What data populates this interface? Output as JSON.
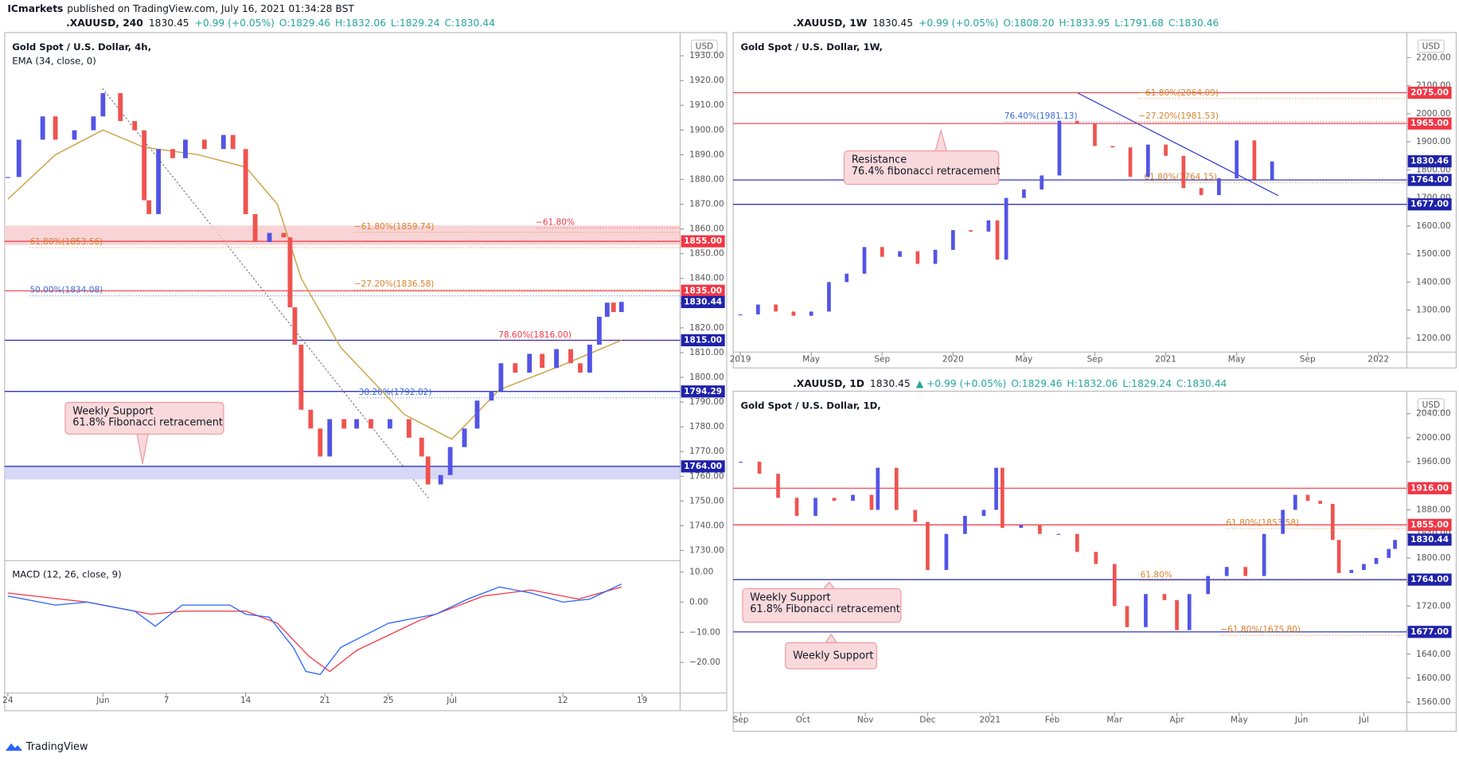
{
  "header": {
    "publisher": "ICmarkets",
    "published": "published on TradingView.com, July 16, 2021 01:34:28 BST"
  },
  "footer": "TradingView",
  "chart_data": [
    {
      "type": "candlestick",
      "symbol": ".XAUUSD, 240",
      "last": "1830.45",
      "change": "+0.99 (+0.05%)",
      "ohlc": [
        "O:1829.46",
        "H:1832.06",
        "L:1829.24",
        "C:1830.44"
      ],
      "title": "Gold Spot / U.S. Dollar, 4h,",
      "indicator": "EMA (34, close, 0)",
      "currency": "USD",
      "up_color": "#5254e6",
      "down_color": "#ef5350",
      "x": [
        0,
        0.7,
        2.2,
        3.0,
        4.2,
        5.4,
        6.0,
        7.1,
        8.0,
        8.6,
        8.9,
        9.5,
        10.4,
        11.2,
        12.4,
        13.6,
        14.2,
        15.0,
        15.6,
        16.5,
        17.4,
        17.8,
        18.1,
        18.5,
        19.1,
        19.7,
        20.3,
        21.2,
        22.0,
        22.9,
        24.1,
        25.3,
        26.1,
        26.5,
        27.3,
        27.9,
        28.8,
        29.6,
        30.5,
        31.1,
        32.0,
        32.9,
        33.7,
        34.6,
        35.5,
        36.1,
        36.7,
        37.3,
        37.8,
        38.2,
        38.7
      ],
      "values": [
        1881.0,
        1896.1,
        1905.5,
        1896.1,
        1899.9,
        1905.5,
        1914.9,
        1903.6,
        1899.9,
        1871.6,
        1866.0,
        1892.3,
        1888.6,
        1896.1,
        1892.3,
        1898.0,
        1892.3,
        1866.0,
        1854.7,
        1858.4,
        1856.6,
        1828.3,
        1813.2,
        1786.9,
        1779.3,
        1768.0,
        1783.1,
        1779.3,
        1783.1,
        1779.3,
        1783.1,
        1775.6,
        1768.0,
        1756.7,
        1760.5,
        1771.8,
        1779.3,
        1790.6,
        1794.4,
        1805.7,
        1801.9,
        1809.5,
        1803.8,
        1811.4,
        1805.7,
        1801.9,
        1813.2,
        1824.5,
        1830.2,
        1826.4,
        1830.5
      ],
      "ema": {
        "color": "#c9a13f",
        "x": [
          0,
          3,
          6,
          8.6,
          12,
          15,
          17,
          18.5,
          21,
          25,
          28,
          31,
          35,
          38.7
        ],
        "values": [
          1872,
          1890,
          1900,
          1893,
          1890,
          1885,
          1870,
          1840,
          1812,
          1785,
          1775,
          1795,
          1805,
          1815
        ]
      },
      "xlim": [
        -0.2,
        42.4
      ],
      "xticks": [
        {
          "value": 0,
          "label": "24"
        },
        {
          "value": 6,
          "label": "Jun"
        },
        {
          "value": 10,
          "label": "7"
        },
        {
          "value": 15,
          "label": "14"
        },
        {
          "value": 20,
          "label": "21"
        },
        {
          "value": 24,
          "label": "25"
        },
        {
          "value": 28,
          "label": "Jul"
        },
        {
          "value": 35,
          "label": "12"
        },
        {
          "value": 40,
          "label": "19"
        }
      ],
      "ylim": [
        1726.6,
        1937.5
      ],
      "yticks": [
        {
          "value": 1730,
          "label": "1730.00"
        },
        {
          "value": 1740,
          "label": "1740.00"
        },
        {
          "value": 1750,
          "label": "1750.00"
        },
        {
          "value": 1760,
          "label": "1760.00"
        },
        {
          "value": 1770,
          "label": "1770.00"
        },
        {
          "value": 1780,
          "label": "1780.00"
        },
        {
          "value": 1790,
          "label": "1790.00"
        },
        {
          "value": 1800,
          "label": "1800.00"
        },
        {
          "value": 1810,
          "label": "1810.00"
        },
        {
          "value": 1820,
          "label": "1820.00"
        },
        {
          "value": 1830,
          "label": "1830.00"
        },
        {
          "value": 1840,
          "label": "1840.00"
        },
        {
          "value": 1850,
          "label": "1850.00"
        },
        {
          "value": 1860,
          "label": "1860.00"
        },
        {
          "value": 1870,
          "label": "1870.00"
        },
        {
          "value": 1880,
          "label": "1880.00"
        },
        {
          "value": 1890,
          "label": "1890.00"
        },
        {
          "value": 1900,
          "label": "1900.00"
        },
        {
          "value": 1910,
          "label": "1910.00"
        },
        {
          "value": 1920,
          "label": "1920.00"
        },
        {
          "value": 1930,
          "label": "1930.00"
        }
      ],
      "levels": [
        {
          "value": 1855,
          "label": "1855.00",
          "color": "#f23645"
        },
        {
          "value": 1835,
          "label": "1835.00",
          "color": "#f23645"
        },
        {
          "value": 1815,
          "label": "1815.00",
          "color": "#1e22aa"
        },
        {
          "value": 1794.29,
          "label": "1794.29",
          "color": "#1e22aa"
        },
        {
          "value": 1764,
          "label": "1764.00",
          "color": "#1e22aa"
        }
      ],
      "last_price": {
        "value": 1830.44,
        "label": "1830.44"
      },
      "fib_labels": [
        {
          "value": 1859.74,
          "label": "−61.80%(1859.74)",
          "color": "#d9822b"
        },
        {
          "value": 1853.56,
          "label": "61.80%(1853.56)",
          "color": "#d9822b"
        },
        {
          "value": 1861.5,
          "label": "−61.80%",
          "color": "#f23645"
        },
        {
          "value": 1836.58,
          "label": "−27.20%(1836.58)",
          "color": "#d9822b"
        },
        {
          "value": 1834.08,
          "label": "50.00%(1834.08)",
          "color": "#3d6bd6"
        },
        {
          "value": 1816,
          "label": "78.60%(1816.00)",
          "color": "#f23645"
        },
        {
          "value": 1792.82,
          "label": "38.20%(1792.82)",
          "color": "#3d6bd6"
        }
      ],
      "annotations": [
        {
          "text": [
            "Weekly Support",
            "61.8% Fibonacci retracement"
          ]
        }
      ],
      "macd": {
        "title": "MACD (12, 26, close, 9)",
        "ylim": [
          -28.9,
          13.4
        ],
        "yticks": [
          {
            "value": 10,
            "label": "10.00"
          },
          {
            "value": 0,
            "label": "0.00"
          },
          {
            "value": -10,
            "label": "−10.00"
          },
          {
            "value": -20,
            "label": "−20.00"
          }
        ],
        "macd": {
          "color": "#2962ff",
          "x": [
            0,
            3,
            5,
            8,
            9.3,
            11,
            14,
            15,
            16.5,
            18,
            18.8,
            19.7,
            21,
            24,
            27,
            29,
            31,
            33,
            35,
            36.7,
            38.7
          ],
          "values": [
            2,
            -1,
            0,
            -3,
            -8,
            -1,
            -1,
            -4,
            -5,
            -15,
            -23,
            -24,
            -15,
            -7,
            -4,
            1,
            5,
            3,
            0,
            1,
            6
          ]
        },
        "signal": {
          "color": "#f23645",
          "x": [
            0,
            5,
            9,
            11,
            15,
            17,
            19,
            20.3,
            22,
            26,
            30,
            33,
            36,
            38.7
          ],
          "values": [
            3,
            0,
            -4,
            -3,
            -3,
            -7,
            -18,
            -23,
            -16,
            -6,
            2,
            4,
            1,
            5
          ]
        }
      }
    },
    {
      "type": "candlestick",
      "symbol": ".XAUUSD, 1W",
      "last": "1830.45",
      "change": "+0.99 (+0.05%)",
      "ohlc": [
        "O:1808.20",
        "H:1833.95",
        "L:1791.68",
        "C:1830.46"
      ],
      "title": "Gold Spot / U.S. Dollar, 1W,",
      "currency": "USD",
      "up_color": "#5254e6",
      "down_color": "#ef5350",
      "x": [
        0,
        1,
        2,
        3,
        4,
        5,
        6,
        7,
        8,
        9,
        10,
        11,
        12,
        13,
        14,
        14.5,
        15,
        16,
        17,
        18,
        19,
        20,
        21,
        22,
        23,
        24,
        25,
        26,
        27,
        28,
        29,
        30
      ],
      "values": [
        1285,
        1320,
        1295,
        1280,
        1295,
        1400,
        1430,
        1525,
        1490,
        1510,
        1465,
        1515,
        1585,
        1580,
        1620,
        1480,
        1700,
        1730,
        1780,
        1975,
        1965,
        1885,
        1880,
        1775,
        1890,
        1850,
        1735,
        1710,
        1770,
        1905,
        1765,
        1830
      ],
      "xlim": [
        -0.4,
        37.6
      ],
      "xticks": [
        {
          "value": 0,
          "label": "2019"
        },
        {
          "value": 4,
          "label": "May"
        },
        {
          "value": 8,
          "label": "Sep"
        },
        {
          "value": 12,
          "label": "2020"
        },
        {
          "value": 16,
          "label": "May"
        },
        {
          "value": 20,
          "label": "Sep"
        },
        {
          "value": 24,
          "label": "2021"
        },
        {
          "value": 28,
          "label": "May"
        },
        {
          "value": 32,
          "label": "Sep"
        },
        {
          "value": 36,
          "label": "2022"
        }
      ],
      "ylim": [
        1150.5,
        2272.6
      ],
      "yticks": [
        {
          "value": 1200,
          "label": "1200.00"
        },
        {
          "value": 1300,
          "label": "1300.00"
        },
        {
          "value": 1400,
          "label": "1400.00"
        },
        {
          "value": 1500,
          "label": "1500.00"
        },
        {
          "value": 1600,
          "label": "1600.00"
        },
        {
          "value": 1700,
          "label": "1700.00"
        },
        {
          "value": 1800,
          "label": "1800.00"
        },
        {
          "value": 1900,
          "label": "1900.00"
        },
        {
          "value": 2000,
          "label": "2000.00"
        },
        {
          "value": 2100,
          "label": "2100.00"
        },
        {
          "value": 2200,
          "label": "2200.00"
        }
      ],
      "levels": [
        {
          "value": 2075,
          "label": "2075.00",
          "color": "#f23645"
        },
        {
          "value": 1965,
          "label": "1965.00",
          "color": "#f23645"
        },
        {
          "value": 1764,
          "label": "1764.00",
          "color": "#1e22aa"
        },
        {
          "value": 1677,
          "label": "1677.00",
          "color": "#1e22aa"
        }
      ],
      "last_price": {
        "value": 1830.46,
        "label": "1830.46"
      },
      "fib_labels": [
        {
          "value": 2064.09,
          "label": "−61.80%(2064.09)",
          "color": "#d9822b"
        },
        {
          "value": 1981.13,
          "label": "76.40%(1981.13)",
          "color": "#3d6bd6"
        },
        {
          "value": 1981.53,
          "label": "−27.20%(1981.53)",
          "color": "#d9822b"
        },
        {
          "value": 1764.15,
          "label": "61.80%(1764.15)",
          "color": "#d9822b"
        }
      ],
      "annotations": [
        {
          "text": [
            "Resistance",
            "76.4% fibonacci retracement"
          ]
        }
      ]
    },
    {
      "type": "candlestick",
      "symbol": ".XAUUSD, 1D",
      "last": "1830.45",
      "change": "▲ +0.99 (+0.05%)",
      "ohlc": [
        "O:1829.46",
        "H:1832.06",
        "L:1829.24",
        "C:1830.44"
      ],
      "title": "Gold Spot / U.S. Dollar, 1D,",
      "currency": "USD",
      "up_color": "#5254e6",
      "down_color": "#ef5350",
      "x": [
        0,
        0.3,
        0.6,
        0.9,
        1.2,
        1.5,
        1.8,
        2.1,
        2.2,
        2.5,
        2.8,
        3.0,
        3.3,
        3.6,
        3.9,
        4.1,
        4.2,
        4.5,
        4.8,
        5.1,
        5.4,
        5.7,
        6.0,
        6.2,
        6.5,
        6.8,
        7.0,
        7.2,
        7.5,
        7.8,
        8.1,
        8.4,
        8.7,
        8.9,
        9.1,
        9.3,
        9.5,
        9.6,
        9.8,
        10.0,
        10.2,
        10.4,
        10.5
      ],
      "values": [
        1960,
        1940,
        1900,
        1870,
        1900,
        1895,
        1905,
        1880,
        1950,
        1880,
        1860,
        1780,
        1840,
        1870,
        1880,
        1950,
        1850,
        1855,
        1840,
        1840,
        1810,
        1790,
        1720,
        1685,
        1740,
        1730,
        1680,
        1740,
        1770,
        1785,
        1770,
        1840,
        1880,
        1905,
        1895,
        1890,
        1830,
        1775,
        1780,
        1790,
        1800,
        1815,
        1830
      ],
      "xlim": [
        -0.12,
        10.69
      ],
      "xticks": [
        {
          "value": 0,
          "label": "Sep"
        },
        {
          "value": 1,
          "label": "Oct"
        },
        {
          "value": 2,
          "label": "Nov"
        },
        {
          "value": 3,
          "label": "Dec"
        },
        {
          "value": 4,
          "label": "2021"
        },
        {
          "value": 5,
          "label": "Feb"
        },
        {
          "value": 6,
          "label": "Mar"
        },
        {
          "value": 7,
          "label": "Apr"
        },
        {
          "value": 8,
          "label": "May"
        },
        {
          "value": 9,
          "label": "Jun"
        },
        {
          "value": 10,
          "label": "Jul"
        }
      ],
      "ylim": [
        1547.5,
        2069.6
      ],
      "yticks": [
        {
          "value": 1560,
          "label": "1560.00"
        },
        {
          "value": 1600,
          "label": "1600.00"
        },
        {
          "value": 1640,
          "label": "1640.00"
        },
        {
          "value": 1680,
          "label": "1680.00"
        },
        {
          "value": 1720,
          "label": "1720.00"
        },
        {
          "value": 1760,
          "label": "1760.00"
        },
        {
          "value": 1800,
          "label": "1800.00"
        },
        {
          "value": 1840,
          "label": "1840.00"
        },
        {
          "value": 1880,
          "label": "1880.00"
        },
        {
          "value": 1920,
          "label": "1920.00"
        },
        {
          "value": 1960,
          "label": "1960.00"
        },
        {
          "value": 2000,
          "label": "2000.00"
        },
        {
          "value": 2040,
          "label": "2040.00"
        }
      ],
      "levels": [
        {
          "value": 1916,
          "label": "1916.00",
          "color": "#f23645"
        },
        {
          "value": 1855,
          "label": "1855.00",
          "color": "#f23645"
        },
        {
          "value": 1764,
          "label": "1764.00",
          "color": "#1e22aa"
        },
        {
          "value": 1677,
          "label": "1677.00",
          "color": "#1e22aa"
        }
      ],
      "last_price": {
        "value": 1830.44,
        "label": "1830.44"
      },
      "fib_labels": [
        {
          "value": 1853.58,
          "label": "61.80%(1853.58)",
          "color": "#d9822b"
        },
        {
          "value": 1767,
          "label": "61.80%",
          "color": "#d9822b"
        },
        {
          "value": 1675.8,
          "label": "−61.80%(1675.80)",
          "color": "#d9822b"
        }
      ],
      "annotations": [
        {
          "text": [
            "Weekly Support",
            "61.8% Fibonacci retracement"
          ]
        },
        {
          "text": [
            "Weekly Support"
          ]
        }
      ]
    }
  ]
}
